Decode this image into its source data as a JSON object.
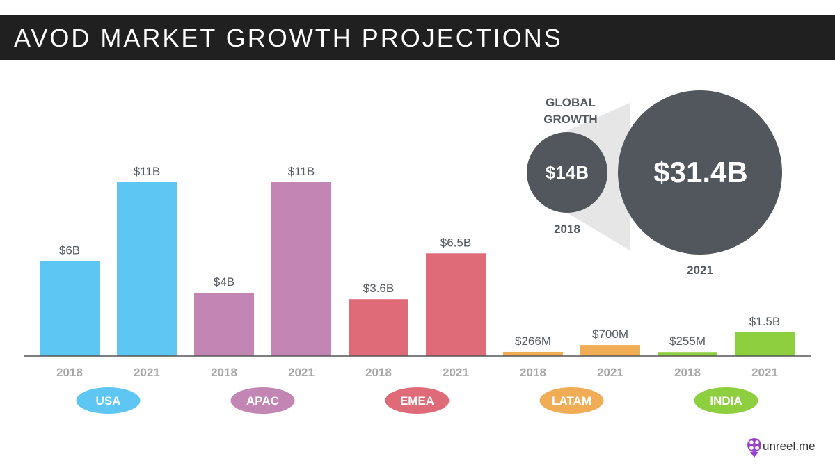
{
  "title": "AVOD MARKET GROWTH PROJECTIONS",
  "colors": {
    "usa": "#5ec6f2",
    "apac": "#c386b4",
    "emea": "#e06b78",
    "latam": "#f0ad55",
    "india": "#8dcf3f",
    "global": "#52565d",
    "connector": "#e6e6e6",
    "axis": "#555555"
  },
  "chart_data": {
    "type": "bar",
    "unit": "USD billions",
    "ylim": [
      0,
      11
    ],
    "regions": [
      {
        "name": "USA",
        "color_key": "usa",
        "years": [
          "2018",
          "2021"
        ],
        "values": [
          6,
          11
        ],
        "labels": [
          "$6B",
          "$11B"
        ]
      },
      {
        "name": "APAC",
        "color_key": "apac",
        "years": [
          "2018",
          "2021"
        ],
        "values": [
          4,
          11
        ],
        "labels": [
          "$4B",
          "$11B"
        ]
      },
      {
        "name": "EMEA",
        "color_key": "emea",
        "years": [
          "2018",
          "2021"
        ],
        "values": [
          3.6,
          6.5
        ],
        "labels": [
          "$3.6B",
          "$6.5B"
        ]
      },
      {
        "name": "LATAM",
        "color_key": "latam",
        "years": [
          "2018",
          "2021"
        ],
        "values": [
          0.266,
          0.7
        ],
        "labels": [
          "$266M",
          "$700M"
        ]
      },
      {
        "name": "INDIA",
        "color_key": "india",
        "years": [
          "2018",
          "2021"
        ],
        "values": [
          0.255,
          1.5
        ],
        "labels": [
          "$255M",
          "$1.5B"
        ]
      }
    ]
  },
  "global_growth": {
    "title_line1": "GLOBAL",
    "title_line2": "GROWTH",
    "value_2018": "$14B",
    "year_2018": "2018",
    "value_2021": "$31.4B",
    "year_2021": "2021"
  },
  "brand": {
    "text": "unreel.me",
    "icon": "film-reel-icon"
  }
}
